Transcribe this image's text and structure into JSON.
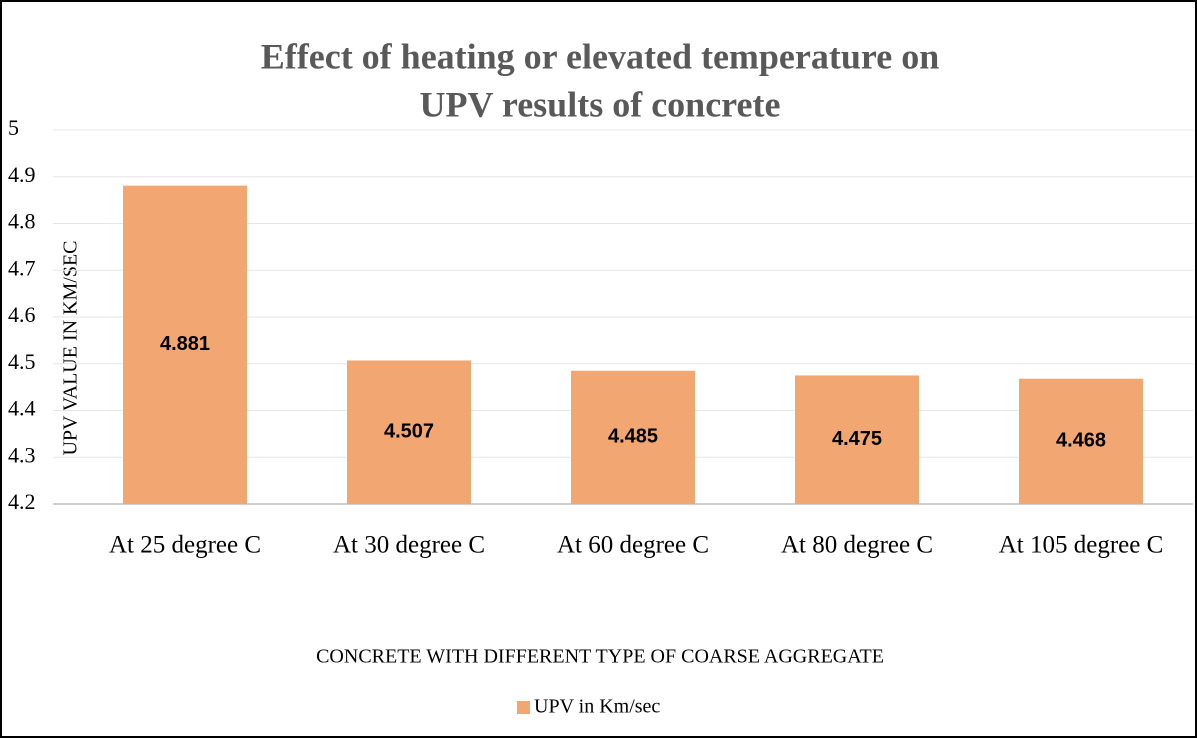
{
  "chart_data": {
    "type": "bar",
    "title": [
      "Effect of heating or elevated temperature on",
      "UPV results of concrete"
    ],
    "y_label": "UPV VALUE IN KM/SEC",
    "x_label": "CONCRETE WITH DIFFERENT TYPE OF COARSE AGGREGATE",
    "categories": [
      "At 25 degree C",
      "At 30 degree C",
      "At 60 degree C",
      "At 80 degree C",
      "At 105 degree C"
    ],
    "series": [
      {
        "name": "UPV in Km/sec",
        "color": "#f2a671",
        "values": [
          4.881,
          4.507,
          4.485,
          4.475,
          4.468
        ]
      }
    ],
    "ylim": [
      4.2,
      5
    ],
    "yticks": [
      4.2,
      4.3,
      4.4,
      4.5,
      4.6,
      4.7,
      4.8,
      4.9,
      5
    ],
    "grid": true,
    "legend": "bottom"
  }
}
